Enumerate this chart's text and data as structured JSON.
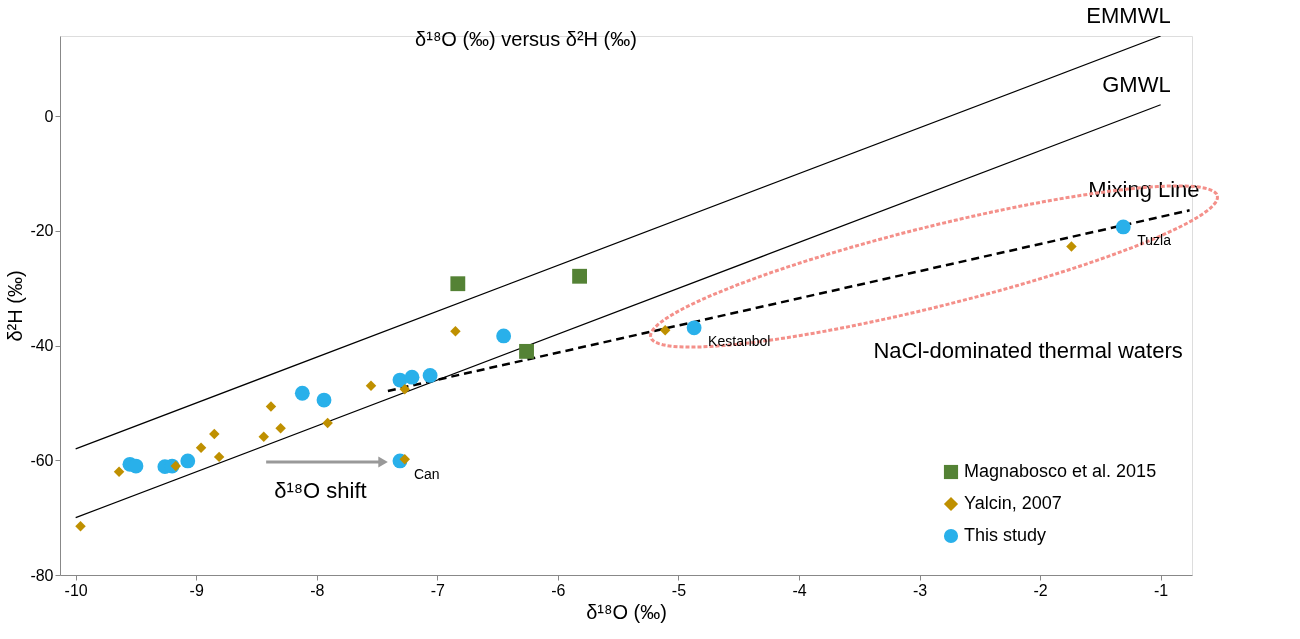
{
  "chart_data": {
    "type": "scatter",
    "title": "δ¹⁸O (‰) versus δ²H (‰)",
    "xlabel": "δ¹⁸O (‰)",
    "ylabel": "δ²H (‰)",
    "xlim": [
      -10.13,
      -0.74
    ],
    "ylim": [
      -80,
      14
    ],
    "xticks": [
      -10,
      -9,
      -8,
      -7,
      -6,
      -5,
      -4,
      -3,
      -2,
      -1
    ],
    "yticks": [
      -80,
      -60,
      -40,
      -20,
      0
    ],
    "grid": false,
    "legend": "bottom right",
    "series": [
      {
        "name": "EMMWL",
        "type": "line",
        "color": "#000000",
        "line_style": "solid",
        "x": [
          -10,
          -1
        ],
        "values": [
          -58,
          14
        ]
      },
      {
        "name": "GMWL",
        "type": "line",
        "color": "#000000",
        "line_style": "solid",
        "x": [
          -10,
          -1
        ],
        "values": [
          -70,
          2
        ]
      },
      {
        "name": "Mixing Line",
        "type": "line",
        "color": "#000000",
        "line_style": "dashed",
        "x": [
          -7.41,
          -0.76
        ],
        "values": [
          -47.9,
          -16.4
        ]
      },
      {
        "name": "Magnabosco et al.  2015",
        "marker": "square",
        "color": "#548235",
        "x": [
          -6.83,
          -5.82,
          -6.26
        ],
        "values": [
          -29.2,
          -27.9,
          -41.0
        ]
      },
      {
        "name": "Yalcin, 2007",
        "marker": "diamond",
        "color": "#bf9000",
        "x": [
          -9.96,
          -9.64,
          -9.17,
          -8.96,
          -8.85,
          -8.81,
          -8.44,
          -8.38,
          -8.3,
          -7.91,
          -7.55,
          -7.27,
          -7.27,
          -6.85,
          -5.11,
          -1.74
        ],
        "values": [
          -71.5,
          -62.0,
          -61.0,
          -57.8,
          -55.4,
          -59.4,
          -55.9,
          -50.6,
          -54.4,
          -53.5,
          -47.0,
          -47.6,
          -59.8,
          -37.5,
          -37.3,
          -22.7
        ]
      },
      {
        "name": "This study",
        "marker": "circle",
        "color": "#29b0ea",
        "x": [
          -9.55,
          -9.5,
          -9.26,
          -9.2,
          -9.07,
          -8.12,
          -7.94,
          -7.31,
          -7.21,
          -7.06,
          -7.31,
          -6.45,
          -4.87,
          -1.31
        ],
        "values": [
          -60.7,
          -61.0,
          -61.1,
          -61.0,
          -60.1,
          -48.3,
          -49.5,
          -46.0,
          -45.5,
          -45.2,
          -60.1,
          -38.3,
          -36.9,
          -19.3
        ]
      }
    ],
    "annotations": [
      {
        "text": "Can",
        "x": -7.31,
        "y": -60.1
      },
      {
        "text": "Kestanbol",
        "x": -4.87,
        "y": -36.9
      },
      {
        "text": "Tuzla",
        "x": -1.31,
        "y": -19.3
      },
      "NaCl-dominated thermal waters",
      "δ¹⁸O shift"
    ]
  }
}
